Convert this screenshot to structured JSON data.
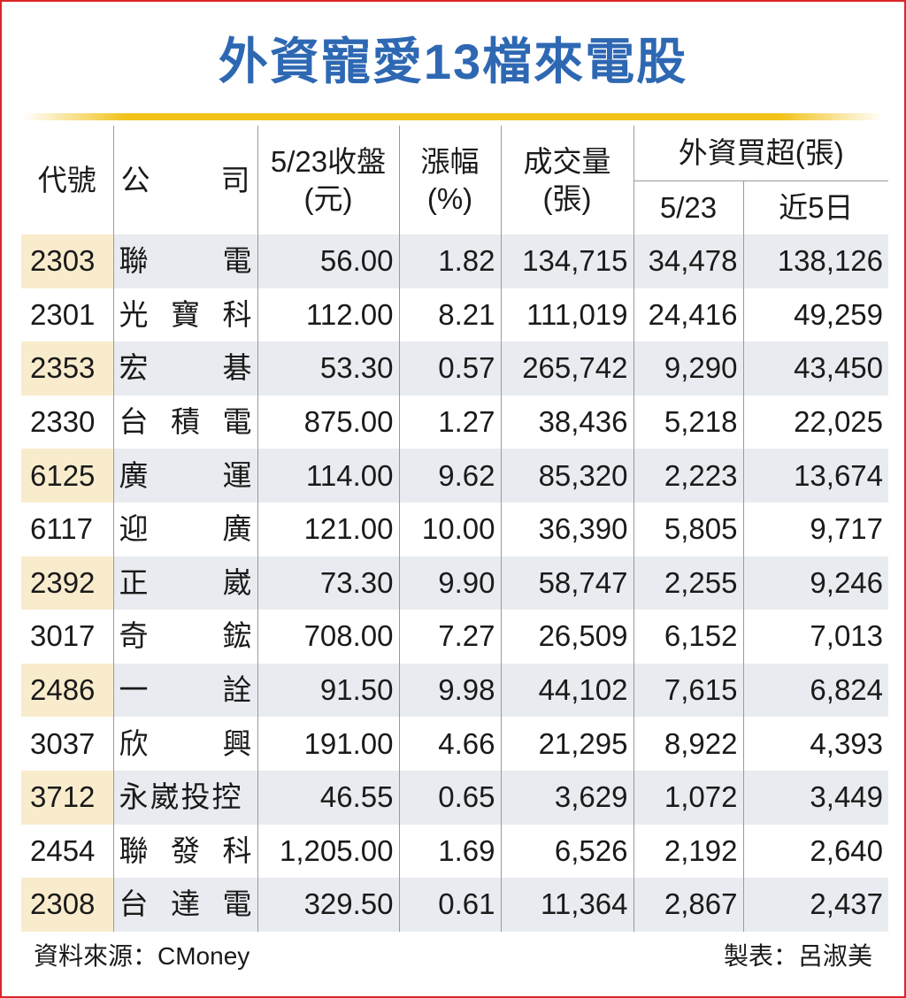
{
  "title": "外資寵愛13檔來電股",
  "headers": {
    "code": "代號",
    "company_a": "公",
    "company_b": "司",
    "close_l1": "5/23收盤",
    "close_l2": "(元)",
    "change_l1": "漲幅",
    "change_l2": "(%)",
    "volume_l1": "成交量",
    "volume_l2": "(張)",
    "foreign_group": "外資買超(張)",
    "foreign_day": "5/23",
    "foreign_5d": "近5日"
  },
  "rows": [
    {
      "code": "2303",
      "name": [
        "聯",
        "電"
      ],
      "close": "56.00",
      "change": "1.82",
      "volume": "134,715",
      "day": "34,478",
      "five": "138,126"
    },
    {
      "code": "2301",
      "name": [
        "光",
        "寶",
        "科"
      ],
      "close": "112.00",
      "change": "8.21",
      "volume": "111,019",
      "day": "24,416",
      "five": "49,259"
    },
    {
      "code": "2353",
      "name": [
        "宏",
        "碁"
      ],
      "close": "53.30",
      "change": "0.57",
      "volume": "265,742",
      "day": "9,290",
      "five": "43,450"
    },
    {
      "code": "2330",
      "name": [
        "台",
        "積",
        "電"
      ],
      "close": "875.00",
      "change": "1.27",
      "volume": "38,436",
      "day": "5,218",
      "five": "22,025"
    },
    {
      "code": "6125",
      "name": [
        "廣",
        "運"
      ],
      "close": "114.00",
      "change": "9.62",
      "volume": "85,320",
      "day": "2,223",
      "five": "13,674"
    },
    {
      "code": "6117",
      "name": [
        "迎",
        "廣"
      ],
      "close": "121.00",
      "change": "10.00",
      "volume": "36,390",
      "day": "5,805",
      "five": "9,717"
    },
    {
      "code": "2392",
      "name": [
        "正",
        "崴"
      ],
      "close": "73.30",
      "change": "9.90",
      "volume": "58,747",
      "day": "2,255",
      "five": "9,246"
    },
    {
      "code": "3017",
      "name": [
        "奇",
        "鋐"
      ],
      "close": "708.00",
      "change": "7.27",
      "volume": "26,509",
      "day": "6,152",
      "five": "7,013"
    },
    {
      "code": "2486",
      "name": [
        "一",
        "詮"
      ],
      "close": "91.50",
      "change": "9.98",
      "volume": "44,102",
      "day": "7,615",
      "five": "6,824"
    },
    {
      "code": "3037",
      "name": [
        "欣",
        "興"
      ],
      "close": "191.00",
      "change": "4.66",
      "volume": "21,295",
      "day": "8,922",
      "five": "4,393"
    },
    {
      "code": "3712",
      "name": [
        "永崴投控"
      ],
      "close": "46.55",
      "change": "0.65",
      "volume": "3,629",
      "day": "1,072",
      "five": "3,449"
    },
    {
      "code": "2454",
      "name": [
        "聯",
        "發",
        "科"
      ],
      "close": "1,205.00",
      "change": "1.69",
      "volume": "6,526",
      "day": "2,192",
      "five": "2,640"
    },
    {
      "code": "2308",
      "name": [
        "台",
        "達",
        "電"
      ],
      "close": "329.50",
      "change": "0.61",
      "volume": "11,364",
      "day": "2,867",
      "five": "2,437"
    }
  ],
  "footer": {
    "source": "資料來源：CMoney",
    "credit": "製表：呂淑美"
  },
  "colors": {
    "title": "#2e68b3",
    "rule": "#f2c219",
    "border": "#d9262b",
    "code_highlight": "#f9eccd",
    "row_highlight": "#e8ebef"
  }
}
